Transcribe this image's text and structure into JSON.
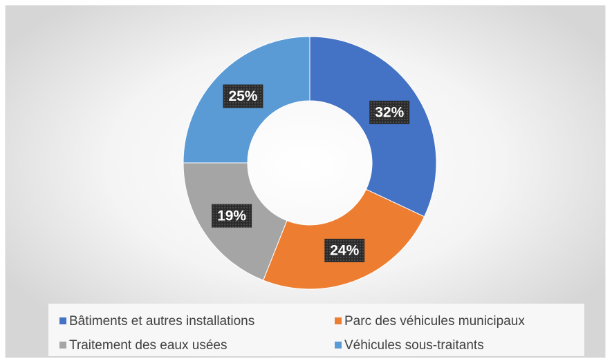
{
  "chart_data": {
    "type": "donut",
    "categories": [
      "Bâtiments et autres installations",
      "Parc des véhicules municipaux",
      "Traitement des eaux usées",
      "Véhicules sous-traitants"
    ],
    "values": [
      32,
      24,
      19,
      25
    ],
    "value_labels": [
      "32%",
      "24%",
      "19%",
      "25%"
    ],
    "colors": [
      "#4472c4",
      "#ed7d31",
      "#a5a5a5",
      "#5b9bd5"
    ],
    "legend": "bottom"
  }
}
